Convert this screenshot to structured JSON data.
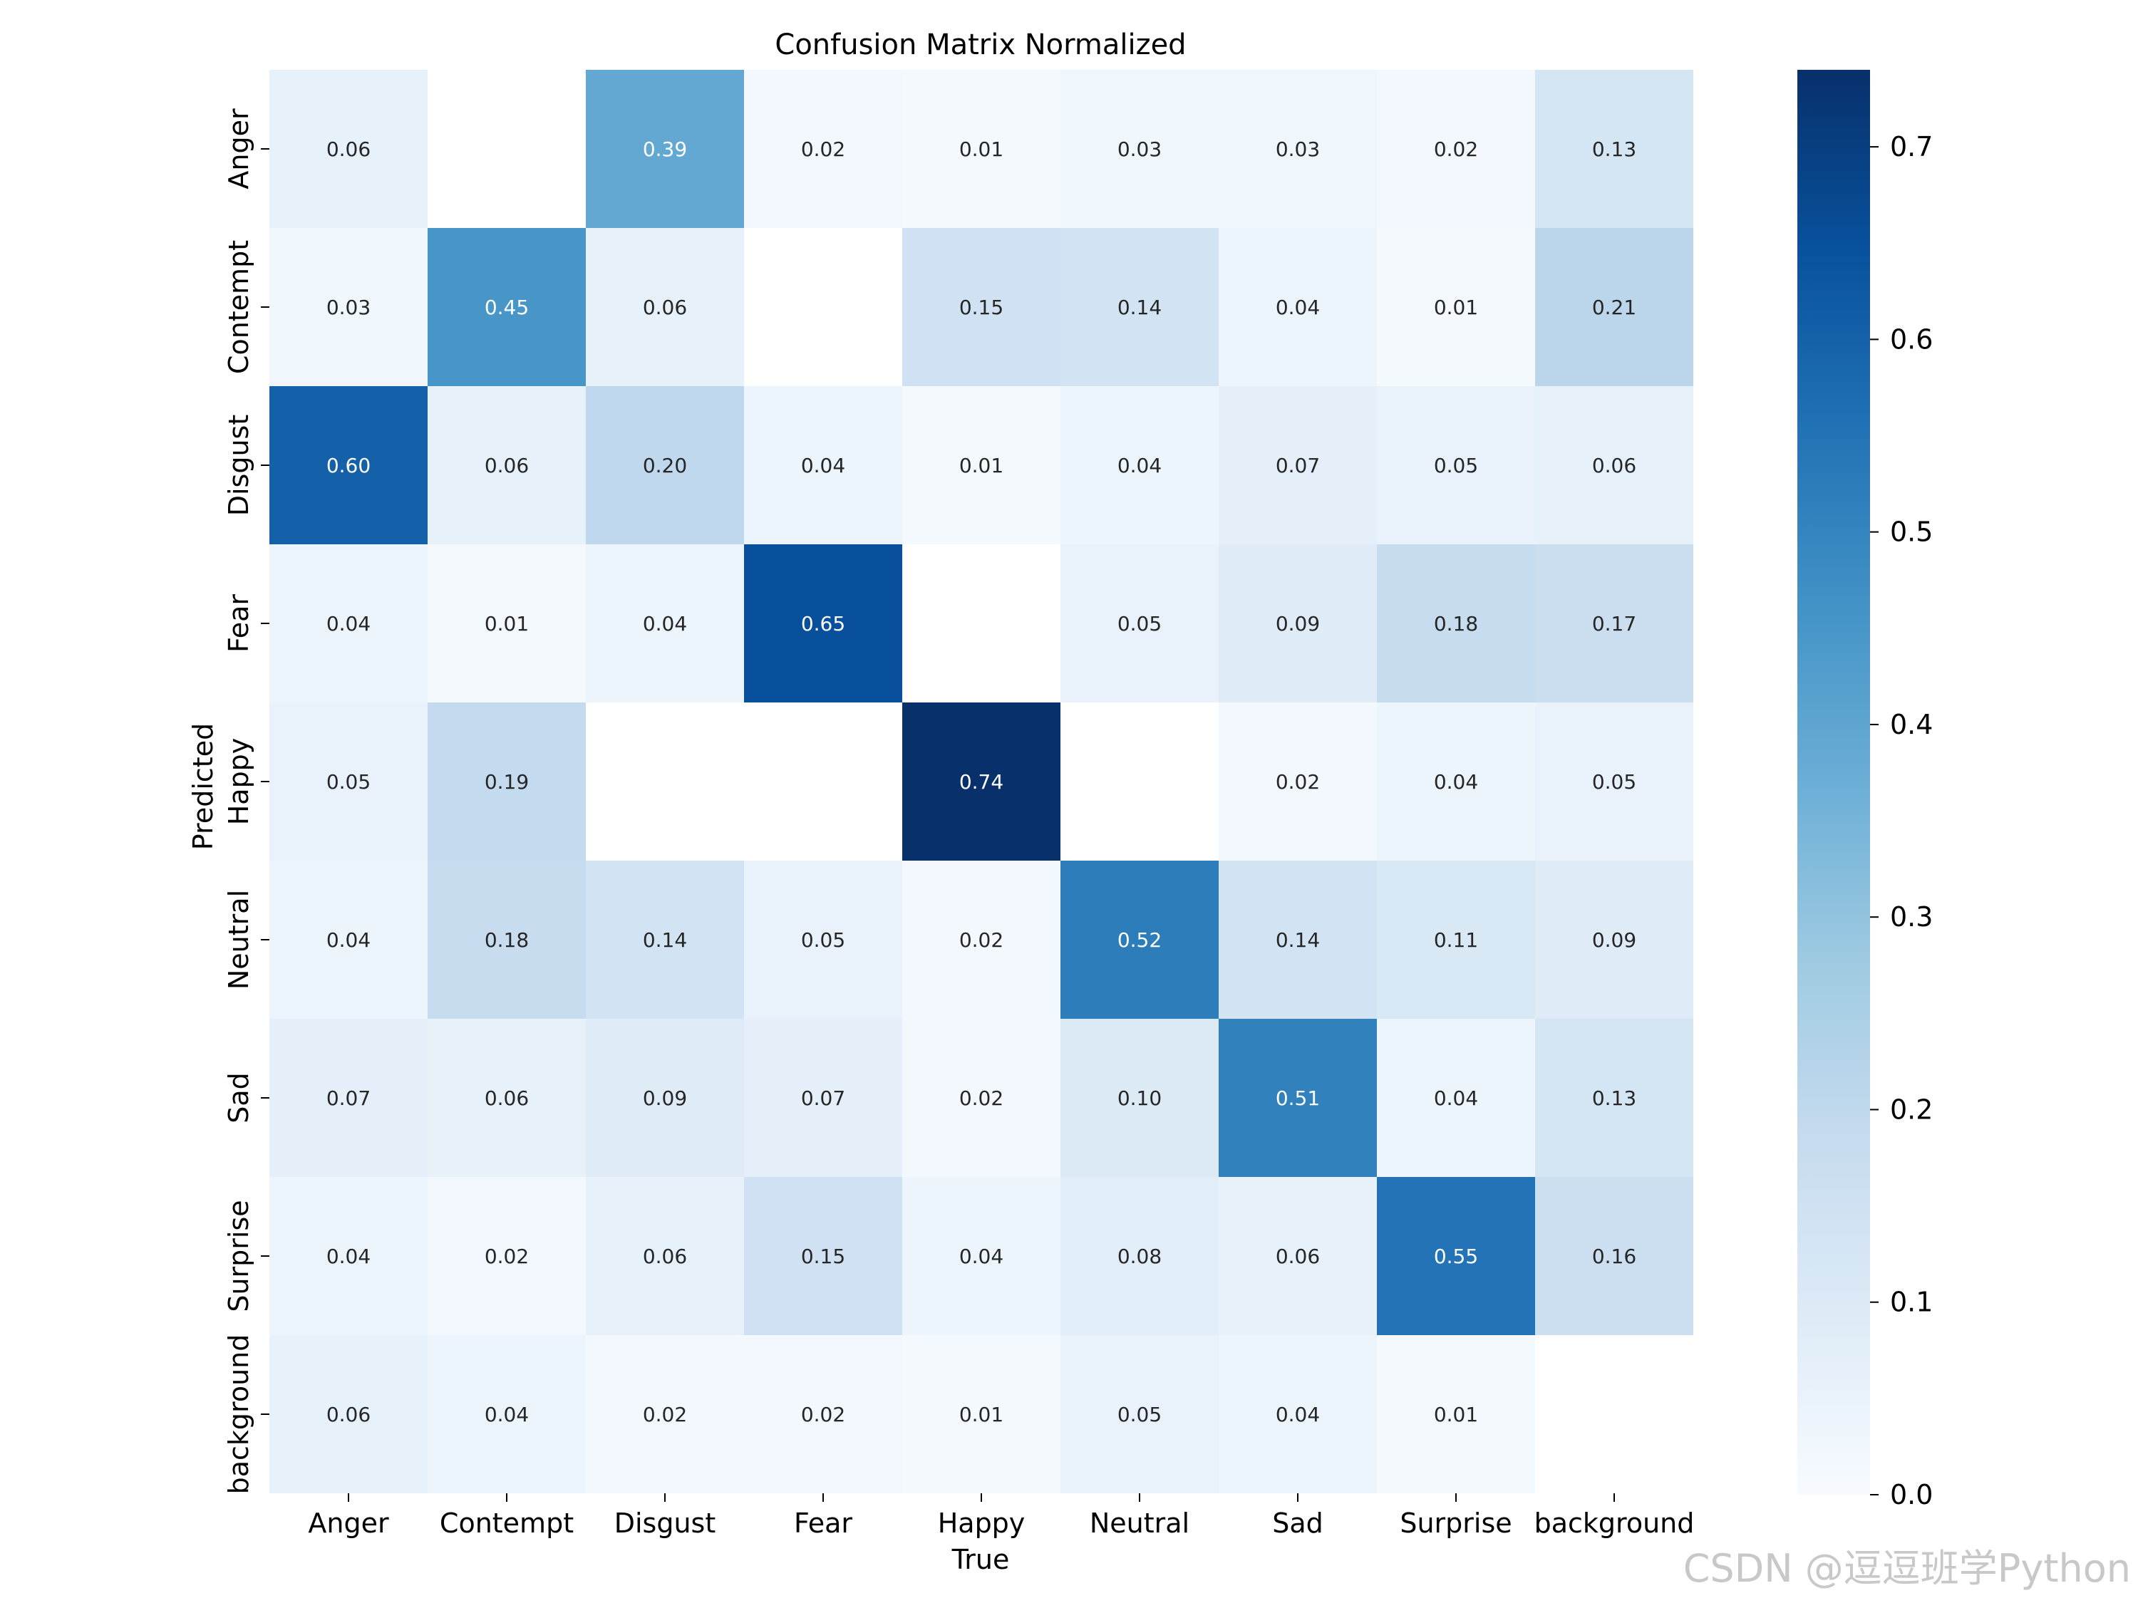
{
  "chart_data": {
    "type": "heatmap",
    "title": "Confusion Matrix Normalized",
    "xlabel": "True",
    "ylabel": "Predicted",
    "x_categories": [
      "Anger",
      "Contempt",
      "Disgust",
      "Fear",
      "Happy",
      "Neutral",
      "Sad",
      "Surprise",
      "background"
    ],
    "y_categories": [
      "Anger",
      "Contempt",
      "Disgust",
      "Fear",
      "Happy",
      "Neutral",
      "Sad",
      "Surprise",
      "background"
    ],
    "matrix": [
      [
        0.06,
        null,
        0.39,
        0.02,
        0.01,
        0.03,
        0.03,
        0.02,
        0.13
      ],
      [
        0.03,
        0.45,
        0.06,
        null,
        0.15,
        0.14,
        0.04,
        0.01,
        0.21
      ],
      [
        0.6,
        0.06,
        0.2,
        0.04,
        0.01,
        0.04,
        0.07,
        0.05,
        0.06
      ],
      [
        0.04,
        0.01,
        0.04,
        0.65,
        null,
        0.05,
        0.09,
        0.18,
        0.17
      ],
      [
        0.05,
        0.19,
        null,
        null,
        0.74,
        null,
        0.02,
        0.04,
        0.05
      ],
      [
        0.04,
        0.18,
        0.14,
        0.05,
        0.02,
        0.52,
        0.14,
        0.11,
        0.09
      ],
      [
        0.07,
        0.06,
        0.09,
        0.07,
        0.02,
        0.1,
        0.51,
        0.04,
        0.13
      ],
      [
        0.04,
        0.02,
        0.06,
        0.15,
        0.04,
        0.08,
        0.06,
        0.55,
        0.16
      ],
      [
        0.06,
        0.04,
        0.02,
        0.02,
        0.01,
        0.05,
        0.04,
        0.01,
        null
      ]
    ],
    "colorbar": {
      "colormap": "Blues",
      "range": [
        0.0,
        0.74
      ],
      "ticks": [
        "0.0",
        "0.1",
        "0.2",
        "0.3",
        "0.4",
        "0.5",
        "0.6",
        "0.7"
      ]
    }
  },
  "watermark": "CSDN @逗逗班学Python"
}
